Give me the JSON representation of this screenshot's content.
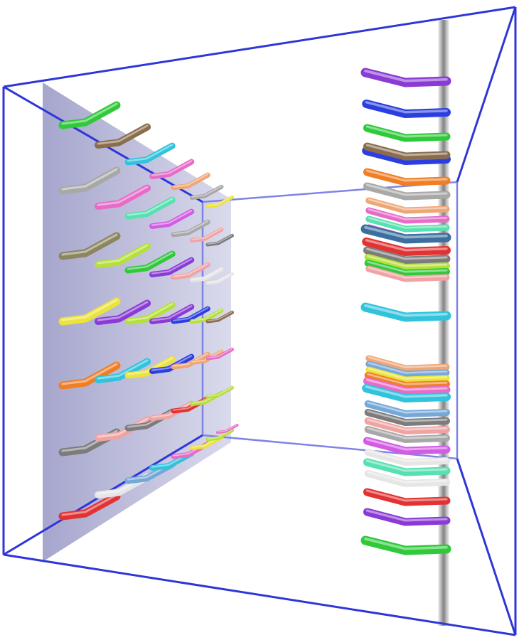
{
  "scene": {
    "box_color": "#2f36d8",
    "inner_box_color": "#7e84e6",
    "wall_color": "#9a9ac6",
    "tube_colors": {
      "green": "#2fc93a",
      "brown": "#8a6d4e",
      "cyan": "#31c3dc",
      "pink": "#e86bc8",
      "peach": "#efa677",
      "gray": "#a8a8a8",
      "magenta": "#d45ce4",
      "mint": "#57e0b0",
      "olive": "#8c8660",
      "yellow": "#ece33a",
      "purple": "#8a3bd6",
      "blue": "#2b3fe0",
      "orange": "#f07e25",
      "red": "#e23232",
      "white": "#e6e6e6",
      "steel": "#3b6f9e",
      "salmon": "#f0a3a3",
      "darkgray": "#7c7c7c",
      "lime": "#b5e03a",
      "skyblue": "#74a8d8"
    }
  }
}
